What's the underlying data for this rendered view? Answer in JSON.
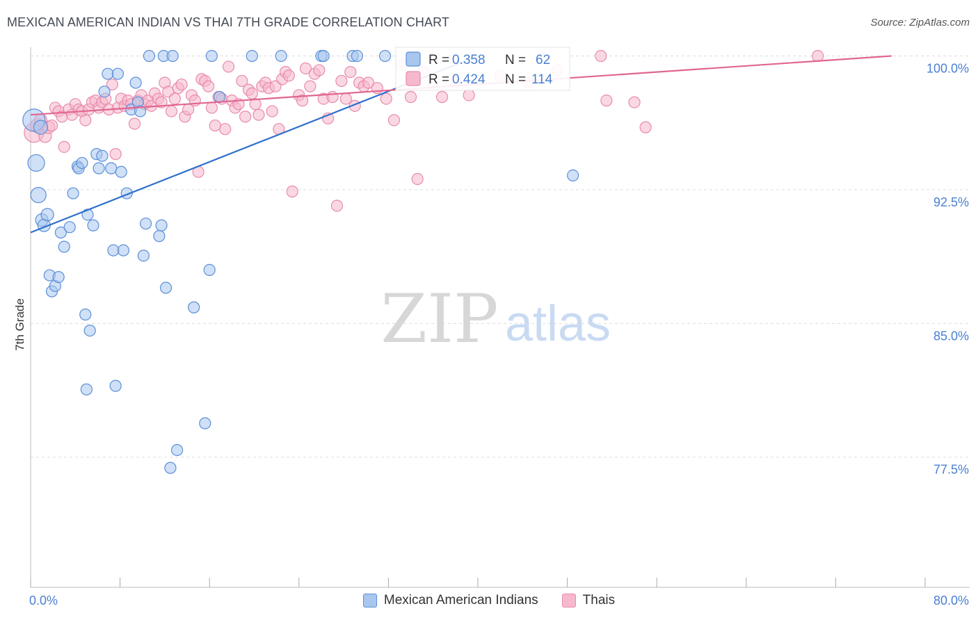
{
  "title": "MEXICAN AMERICAN INDIAN VS THAI 7TH GRADE CORRELATION CHART",
  "source": "Source: ZipAtlas.com",
  "watermark": {
    "zip": "ZIP",
    "atlas": "atlas"
  },
  "colors": {
    "blue_fill": "#a9c6ee",
    "blue_stroke": "#5b8fd8",
    "blue_line": "#2e6fcc",
    "pink_fill": "#f6b8cc",
    "pink_stroke": "#e98aaa",
    "pink_line": "#e0668f",
    "axis_text": "#4a7fd0",
    "grid": "#dddddd"
  },
  "legend_top": [
    {
      "r_label": "R =",
      "r_value": "0.358",
      "n_label": "N =",
      "n_value": "62",
      "series": "blue"
    },
    {
      "r_label": "R =",
      "r_value": "0.424",
      "n_label": "N =",
      "n_value": "114",
      "series": "pink"
    }
  ],
  "legend_bottom": [
    {
      "label": "Mexican American Indians",
      "series": "blue"
    },
    {
      "label": "Thais",
      "series": "pink"
    }
  ],
  "chart_data": {
    "type": "scatter",
    "title": "MEXICAN AMERICAN INDIAN VS THAI 7TH GRADE CORRELATION CHART",
    "xlabel": "",
    "ylabel": "7th Grade",
    "xlim": [
      0,
      80
    ],
    "ylim": [
      70.2,
      100.8
    ],
    "x_tick_labels": [
      {
        "value": 0,
        "label": "0.0%"
      },
      {
        "value": 80,
        "label": "80.0%"
      }
    ],
    "x_minor_ticks": [
      0,
      8,
      16,
      24,
      32,
      40,
      48,
      56,
      64,
      72,
      80
    ],
    "y_ticks": [
      {
        "value": 100,
        "label": "100.0%"
      },
      {
        "value": 92.5,
        "label": "92.5%"
      },
      {
        "value": 85,
        "label": "85.0%"
      },
      {
        "value": 77.5,
        "label": "77.5%"
      }
    ],
    "grid": true,
    "series": [
      {
        "name": "Mexican American Indians",
        "color": "blue",
        "trend": {
          "x": [
            0,
            40
          ],
          "y": [
            90.1,
            100.0
          ]
        },
        "points": [
          [
            0.3,
            96.4,
            16
          ],
          [
            0.5,
            94.0,
            12
          ],
          [
            0.7,
            92.2,
            11
          ],
          [
            0.9,
            96.0,
            10
          ],
          [
            1.0,
            90.8,
            9
          ],
          [
            1.2,
            90.5,
            9
          ],
          [
            1.5,
            91.1,
            9
          ],
          [
            1.7,
            87.7,
            8
          ],
          [
            1.9,
            86.8,
            8
          ],
          [
            2.2,
            87.1,
            8
          ],
          [
            2.5,
            87.6,
            8
          ],
          [
            2.7,
            90.1,
            8
          ],
          [
            3.0,
            89.3,
            8
          ],
          [
            3.5,
            90.4,
            8
          ],
          [
            3.8,
            92.3,
            8
          ],
          [
            4.2,
            93.8,
            8
          ],
          [
            4.3,
            93.7,
            8
          ],
          [
            4.6,
            94.0,
            8
          ],
          [
            4.9,
            85.5,
            8
          ],
          [
            5.0,
            81.3,
            8
          ],
          [
            5.1,
            91.1,
            8
          ],
          [
            5.3,
            84.6,
            8
          ],
          [
            5.6,
            90.5,
            8
          ],
          [
            5.9,
            94.5,
            8
          ],
          [
            6.1,
            93.7,
            8
          ],
          [
            6.4,
            94.4,
            8
          ],
          [
            6.6,
            98.0,
            8
          ],
          [
            6.9,
            99.0,
            8
          ],
          [
            7.2,
            93.7,
            8
          ],
          [
            7.4,
            89.1,
            8
          ],
          [
            7.6,
            81.5,
            8
          ],
          [
            7.8,
            99.0,
            8
          ],
          [
            8.1,
            93.5,
            8
          ],
          [
            8.3,
            89.1,
            8
          ],
          [
            8.6,
            92.3,
            8
          ],
          [
            9.0,
            97.0,
            8
          ],
          [
            9.4,
            98.5,
            8
          ],
          [
            9.6,
            97.4,
            8
          ],
          [
            9.8,
            96.9,
            8
          ],
          [
            10.1,
            88.8,
            8
          ],
          [
            10.3,
            90.6,
            8
          ],
          [
            10.6,
            100.0,
            8
          ],
          [
            11.5,
            89.9,
            8
          ],
          [
            11.7,
            90.5,
            8
          ],
          [
            11.9,
            100.0,
            8
          ],
          [
            12.1,
            87.0,
            8
          ],
          [
            12.5,
            76.9,
            8
          ],
          [
            12.7,
            100.0,
            8
          ],
          [
            13.1,
            77.9,
            8
          ],
          [
            14.6,
            85.9,
            8
          ],
          [
            15.6,
            79.4,
            8
          ],
          [
            16.0,
            88.0,
            8
          ],
          [
            16.2,
            100.0,
            8
          ],
          [
            16.9,
            97.7,
            8
          ],
          [
            19.8,
            100.0,
            8
          ],
          [
            22.4,
            100.0,
            8
          ],
          [
            26.0,
            100.0,
            8
          ],
          [
            26.2,
            100.0,
            8
          ],
          [
            28.8,
            100.0,
            8
          ],
          [
            29.2,
            100.0,
            8
          ],
          [
            31.7,
            100.0,
            8
          ],
          [
            48.5,
            93.3,
            8
          ]
        ]
      },
      {
        "name": "Thais",
        "color": "pink",
        "trend": {
          "x": [
            0,
            77
          ],
          "y": [
            96.7,
            100.0
          ]
        },
        "points": [
          [
            0.3,
            95.7,
            14
          ],
          [
            0.6,
            96.1,
            10
          ],
          [
            0.9,
            96.4,
            9
          ],
          [
            1.3,
            95.5,
            9
          ],
          [
            1.6,
            96.0,
            9
          ],
          [
            1.9,
            96.1,
            8
          ],
          [
            2.2,
            97.1,
            8
          ],
          [
            2.5,
            96.9,
            8
          ],
          [
            2.8,
            96.6,
            8
          ],
          [
            3.0,
            94.9,
            8
          ],
          [
            3.4,
            97.0,
            8
          ],
          [
            3.7,
            96.7,
            8
          ],
          [
            4.0,
            97.3,
            8
          ],
          [
            4.3,
            97.0,
            8
          ],
          [
            4.6,
            96.9,
            8
          ],
          [
            4.9,
            96.4,
            8
          ],
          [
            5.2,
            97.0,
            8
          ],
          [
            5.5,
            97.4,
            8
          ],
          [
            5.8,
            97.5,
            8
          ],
          [
            6.1,
            97.1,
            8
          ],
          [
            6.4,
            97.4,
            8
          ],
          [
            6.7,
            97.6,
            8
          ],
          [
            7.0,
            97.0,
            8
          ],
          [
            7.3,
            98.4,
            8
          ],
          [
            7.6,
            94.5,
            8
          ],
          [
            7.8,
            97.1,
            8
          ],
          [
            8.1,
            97.6,
            8
          ],
          [
            8.4,
            97.2,
            8
          ],
          [
            8.7,
            97.5,
            8
          ],
          [
            9.0,
            97.3,
            8
          ],
          [
            9.3,
            96.2,
            8
          ],
          [
            9.6,
            97.5,
            8
          ],
          [
            9.9,
            97.8,
            8
          ],
          [
            10.2,
            97.3,
            8
          ],
          [
            10.5,
            97.5,
            8
          ],
          [
            10.8,
            97.2,
            8
          ],
          [
            11.1,
            97.9,
            8
          ],
          [
            11.4,
            97.6,
            8
          ],
          [
            11.7,
            97.4,
            8
          ],
          [
            12.0,
            98.5,
            8
          ],
          [
            12.3,
            98.0,
            8
          ],
          [
            12.6,
            96.9,
            8
          ],
          [
            12.9,
            97.6,
            8
          ],
          [
            13.2,
            98.2,
            8
          ],
          [
            13.5,
            98.4,
            8
          ],
          [
            13.8,
            96.6,
            8
          ],
          [
            14.1,
            97.0,
            8
          ],
          [
            14.4,
            97.8,
            8
          ],
          [
            14.7,
            97.5,
            8
          ],
          [
            15.0,
            93.5,
            8
          ],
          [
            15.3,
            98.7,
            8
          ],
          [
            15.6,
            98.6,
            8
          ],
          [
            15.9,
            98.3,
            8
          ],
          [
            16.2,
            97.1,
            8
          ],
          [
            16.5,
            96.1,
            8
          ],
          [
            16.8,
            97.7,
            8
          ],
          [
            17.1,
            97.6,
            8
          ],
          [
            17.4,
            95.9,
            8
          ],
          [
            17.7,
            99.4,
            8
          ],
          [
            18.0,
            97.5,
            8
          ],
          [
            18.3,
            97.1,
            8
          ],
          [
            18.6,
            97.3,
            8
          ],
          [
            18.9,
            98.6,
            8
          ],
          [
            19.2,
            96.6,
            8
          ],
          [
            19.5,
            98.1,
            8
          ],
          [
            19.8,
            97.9,
            8
          ],
          [
            20.1,
            97.3,
            8
          ],
          [
            20.4,
            96.7,
            8
          ],
          [
            20.7,
            98.3,
            8
          ],
          [
            21.0,
            98.5,
            8
          ],
          [
            21.3,
            98.2,
            8
          ],
          [
            21.6,
            96.9,
            8
          ],
          [
            21.9,
            98.3,
            8
          ],
          [
            22.2,
            95.9,
            8
          ],
          [
            22.5,
            98.7,
            8
          ],
          [
            22.8,
            99.1,
            8
          ],
          [
            23.1,
            98.9,
            8
          ],
          [
            23.4,
            92.4,
            8
          ],
          [
            24.0,
            97.8,
            8
          ],
          [
            24.3,
            97.5,
            8
          ],
          [
            24.6,
            99.3,
            8
          ],
          [
            25.0,
            98.3,
            8
          ],
          [
            25.4,
            99.0,
            8
          ],
          [
            25.8,
            99.2,
            8
          ],
          [
            26.2,
            97.6,
            8
          ],
          [
            26.6,
            96.5,
            8
          ],
          [
            27.0,
            97.7,
            8
          ],
          [
            27.4,
            91.6,
            8
          ],
          [
            27.8,
            98.6,
            8
          ],
          [
            28.2,
            97.6,
            8
          ],
          [
            28.6,
            99.1,
            8
          ],
          [
            29.0,
            97.2,
            8
          ],
          [
            29.4,
            98.5,
            8
          ],
          [
            29.8,
            98.3,
            8
          ],
          [
            30.2,
            98.5,
            8
          ],
          [
            31.0,
            98.2,
            8
          ],
          [
            31.8,
            97.6,
            8
          ],
          [
            32.5,
            96.4,
            8
          ],
          [
            33.2,
            99.5,
            8
          ],
          [
            34.0,
            97.7,
            8
          ],
          [
            34.6,
            93.1,
            8
          ],
          [
            35.2,
            99.1,
            8
          ],
          [
            36.0,
            98.5,
            8
          ],
          [
            36.8,
            97.7,
            8
          ],
          [
            38.0,
            98.5,
            8
          ],
          [
            39.2,
            97.8,
            8
          ],
          [
            42.0,
            98.9,
            8
          ],
          [
            44.5,
            98.5,
            8
          ],
          [
            47.1,
            99.2,
            8
          ],
          [
            51.0,
            100.0,
            8
          ],
          [
            51.5,
            97.5,
            8
          ],
          [
            54.0,
            97.4,
            8
          ],
          [
            55.0,
            96.0,
            8
          ],
          [
            70.4,
            100.0,
            8
          ]
        ]
      }
    ]
  }
}
